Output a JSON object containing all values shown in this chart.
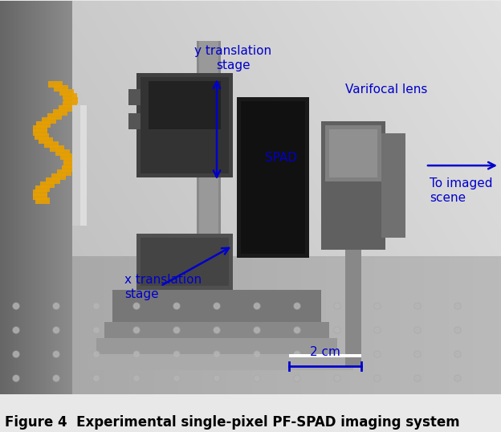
{
  "figure_width": 6.24,
  "figure_height": 5.38,
  "dpi": 100,
  "caption": "Figure 4  Experimental single-pixel PF-SPAD imaging system",
  "caption_fontsize": 12,
  "annotation_color": "#0000cc",
  "annotation_fontsize": 11,
  "photo_bg_top": "#c8c8c8",
  "photo_bg_bottom": "#a0a0a0",
  "outer_bg": "#e8e8e8",
  "scalebar_text": "2 cm",
  "y_trans_text": "y translation\nstage",
  "spad_text": "SPAD",
  "varifocal_text": "Varifocal lens",
  "to_imaged_text": "To imaged\nscene",
  "x_trans_text": "x translation\nstage"
}
